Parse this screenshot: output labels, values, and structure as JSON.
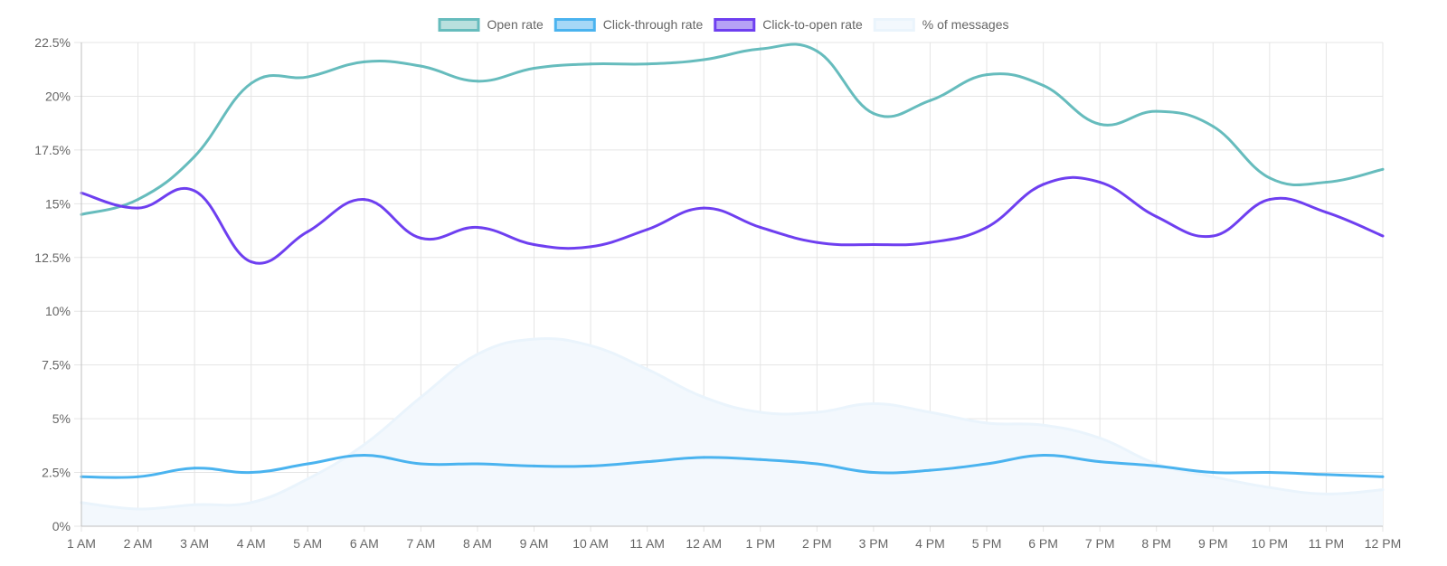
{
  "chart_data": {
    "type": "line",
    "categories": [
      "1 AM",
      "2 AM",
      "3 AM",
      "4 AM",
      "5 AM",
      "6 AM",
      "7 AM",
      "8 AM",
      "9 AM",
      "10 AM",
      "11 AM",
      "12 AM",
      "1 PM",
      "2 PM",
      "3 PM",
      "4 PM",
      "5 PM",
      "6 PM",
      "7 PM",
      "8 PM",
      "9 PM",
      "10 PM",
      "11 PM",
      "12 PM"
    ],
    "y_ticks": [
      "0%",
      "2.5%",
      "5%",
      "7.5%",
      "10%",
      "12.5%",
      "15%",
      "17.5%",
      "20%",
      "22.5%"
    ],
    "ylim": [
      0,
      22.5
    ],
    "grid": true,
    "legend_position": "top",
    "series": [
      {
        "name": "Open rate",
        "kind": "line",
        "color": "#66bcbd",
        "fill": "#b8e0de",
        "values": [
          14.5,
          15.2,
          17.2,
          20.6,
          20.9,
          21.6,
          21.4,
          20.7,
          21.3,
          21.5,
          21.5,
          21.7,
          22.2,
          22.1,
          19.2,
          19.8,
          21.0,
          20.5,
          18.7,
          19.3,
          18.6,
          16.2,
          16.0,
          16.6
        ]
      },
      {
        "name": "Click-through rate",
        "kind": "line",
        "color": "#4ab3ef",
        "fill": "#a6d8f7",
        "values": [
          2.3,
          2.3,
          2.7,
          2.5,
          2.9,
          3.3,
          2.9,
          2.9,
          2.8,
          2.8,
          3.0,
          3.2,
          3.1,
          2.9,
          2.5,
          2.6,
          2.9,
          3.3,
          3.0,
          2.8,
          2.5,
          2.5,
          2.4,
          2.3
        ]
      },
      {
        "name": "Click-to-open rate",
        "kind": "line",
        "color": "#6e3ff0",
        "fill": "#b6a2f6",
        "values": [
          15.5,
          14.8,
          15.6,
          12.3,
          13.7,
          15.2,
          13.4,
          13.9,
          13.1,
          13.0,
          13.8,
          14.8,
          13.9,
          13.2,
          13.1,
          13.2,
          13.9,
          15.9,
          16.0,
          14.4,
          13.5,
          15.2,
          14.6,
          13.5
        ]
      },
      {
        "name": "% of messages",
        "kind": "area",
        "color": "#eaf4fc",
        "fill": "#f3f8fd",
        "values": [
          1.1,
          0.8,
          1.0,
          1.1,
          2.2,
          3.8,
          6.0,
          8.0,
          8.7,
          8.4,
          7.3,
          6.0,
          5.3,
          5.3,
          5.7,
          5.3,
          4.8,
          4.7,
          4.1,
          2.9,
          2.3,
          1.8,
          1.5,
          1.7
        ]
      }
    ]
  }
}
